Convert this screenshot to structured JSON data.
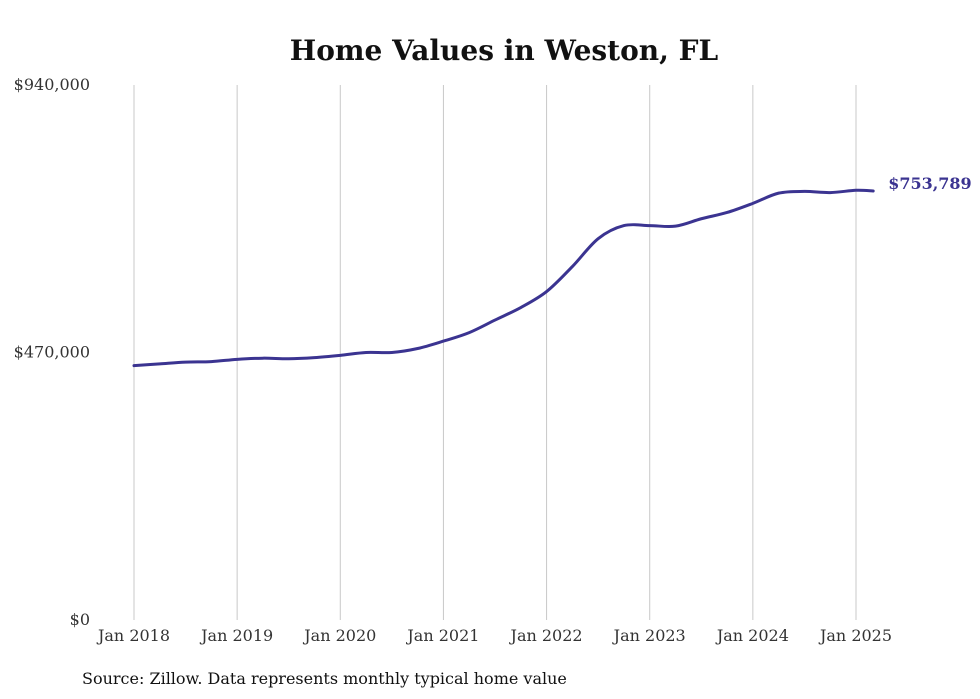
{
  "chart_data": {
    "type": "line",
    "title": "Home Values in Weston, FL",
    "xlabel": "",
    "ylabel": "",
    "ylim": [
      0,
      940000
    ],
    "y_ticks": [
      {
        "value": 0,
        "label": "$0"
      },
      {
        "value": 470000,
        "label": "$470,000"
      },
      {
        "value": 940000,
        "label": "$940,000"
      }
    ],
    "x_ticks": [
      {
        "value": "2018-01",
        "label": "Jan 2018"
      },
      {
        "value": "2019-01",
        "label": "Jan 2019"
      },
      {
        "value": "2020-01",
        "label": "Jan 2020"
      },
      {
        "value": "2021-01",
        "label": "Jan 2021"
      },
      {
        "value": "2022-01",
        "label": "Jan 2022"
      },
      {
        "value": "2023-01",
        "label": "Jan 2023"
      },
      {
        "value": "2024-01",
        "label": "Jan 2024"
      },
      {
        "value": "2025-01",
        "label": "Jan 2025"
      }
    ],
    "xlim": [
      "2018-01",
      "2025-03"
    ],
    "grid": "vertical",
    "color": "#3b3491",
    "end_label": "$753,789",
    "series": [
      {
        "values": [
          {
            "x": "2018-01",
            "y": 447000
          },
          {
            "x": "2018-04",
            "y": 450000
          },
          {
            "x": "2018-07",
            "y": 453000
          },
          {
            "x": "2018-10",
            "y": 454000
          },
          {
            "x": "2019-01",
            "y": 458000
          },
          {
            "x": "2019-04",
            "y": 460000
          },
          {
            "x": "2019-07",
            "y": 459000
          },
          {
            "x": "2019-10",
            "y": 461000
          },
          {
            "x": "2020-01",
            "y": 465000
          },
          {
            "x": "2020-04",
            "y": 470000
          },
          {
            "x": "2020-07",
            "y": 470000
          },
          {
            "x": "2020-10",
            "y": 477000
          },
          {
            "x": "2021-01",
            "y": 490000
          },
          {
            "x": "2021-04",
            "y": 505000
          },
          {
            "x": "2021-07",
            "y": 527000
          },
          {
            "x": "2021-10",
            "y": 549000
          },
          {
            "x": "2022-01",
            "y": 577000
          },
          {
            "x": "2022-04",
            "y": 621000
          },
          {
            "x": "2022-07",
            "y": 670000
          },
          {
            "x": "2022-10",
            "y": 693000
          },
          {
            "x": "2023-01",
            "y": 693000
          },
          {
            "x": "2023-04",
            "y": 692000
          },
          {
            "x": "2023-07",
            "y": 705000
          },
          {
            "x": "2023-10",
            "y": 716000
          },
          {
            "x": "2024-01",
            "y": 732000
          },
          {
            "x": "2024-04",
            "y": 750000
          },
          {
            "x": "2024-07",
            "y": 753000
          },
          {
            "x": "2024-10",
            "y": 751000
          },
          {
            "x": "2025-01",
            "y": 755000
          },
          {
            "x": "2025-03",
            "y": 753789
          }
        ]
      }
    ]
  },
  "source": "Source: Zillow. Data represents monthly typical home value"
}
